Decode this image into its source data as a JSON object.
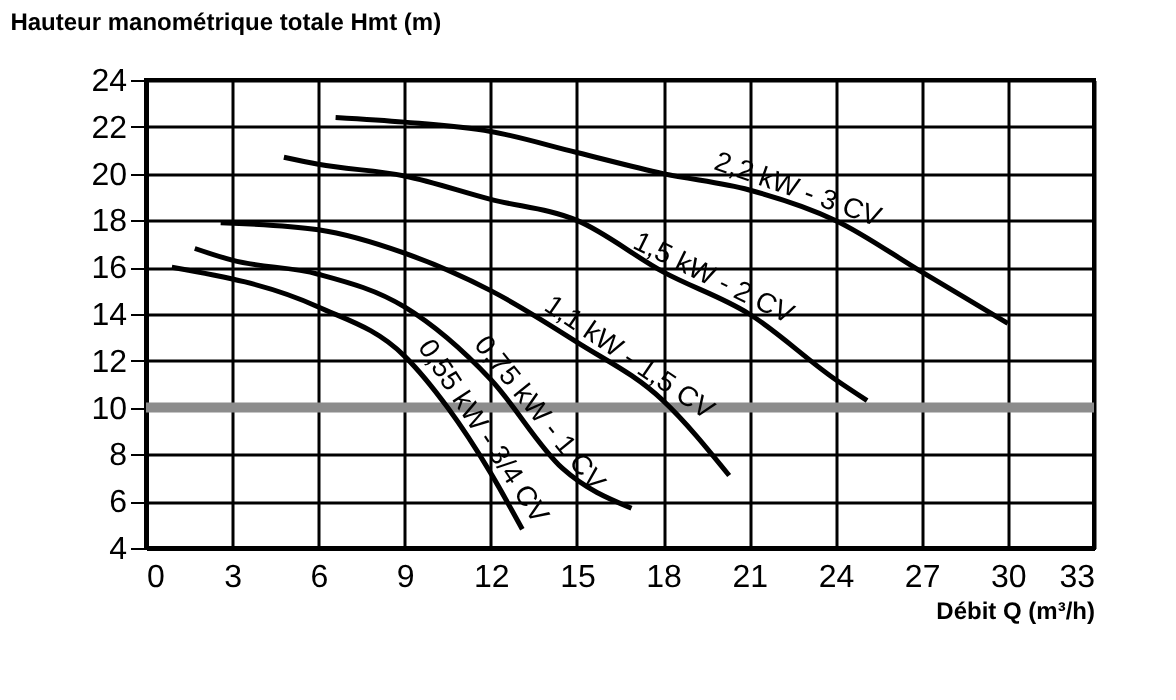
{
  "chart_data": {
    "type": "line",
    "xlabel": "Débit Q (m³/h)",
    "ylabel": "Hauteur manométrique totale Hmt (m)",
    "xlim": [
      0,
      33
    ],
    "ylim": [
      4,
      24
    ],
    "xticks": [
      0,
      3,
      6,
      9,
      12,
      15,
      18,
      21,
      24,
      27,
      30,
      33
    ],
    "yticks": [
      4,
      6,
      8,
      10,
      12,
      14,
      16,
      18,
      20,
      22,
      24
    ],
    "grid": true,
    "marker": "none",
    "line_style": "solid",
    "ref_lines": [
      {
        "axis": "y",
        "value": 10,
        "color": "#8c8c8c"
      }
    ],
    "series": [
      {
        "name": "2,2 kW - 3 CV",
        "color": "#000000",
        "x": [
          6.6,
          9,
          12,
          15,
          18,
          21,
          24,
          27,
          30
        ],
        "values": [
          22.4,
          22.2,
          21.8,
          20.9,
          20,
          19.3,
          18,
          15.8,
          13.6
        ]
      },
      {
        "name": "1,5 kW - 2 CV",
        "color": "#000000",
        "x": [
          4.8,
          6,
          9,
          12,
          15,
          18,
          21,
          24,
          25.1
        ],
        "values": [
          20.7,
          20.4,
          19.9,
          18.9,
          18,
          15.8,
          14,
          11.2,
          10.3
        ]
      },
      {
        "name": "1,1 kW - 1,5 CV",
        "color": "#000000",
        "x": [
          2.6,
          6,
          9,
          12,
          15,
          18,
          20.3
        ],
        "values": [
          17.9,
          17.6,
          16.6,
          15,
          12.8,
          10.3,
          7.1
        ]
      },
      {
        "name": "0,75 kW - 1 CV",
        "color": "#000000",
        "x": [
          1.7,
          3,
          6,
          9,
          12,
          14.5,
          16.9
        ],
        "values": [
          16.8,
          16.3,
          15.7,
          14.3,
          11.2,
          7.4,
          5.7
        ]
      },
      {
        "name": "0,55 kW - 3/4 CV",
        "color": "#000000",
        "x": [
          0.9,
          6,
          9,
          10.5,
          12,
          13.1
        ],
        "values": [
          16,
          14.3,
          12.2,
          10,
          7.2,
          4.8
        ]
      }
    ]
  }
}
